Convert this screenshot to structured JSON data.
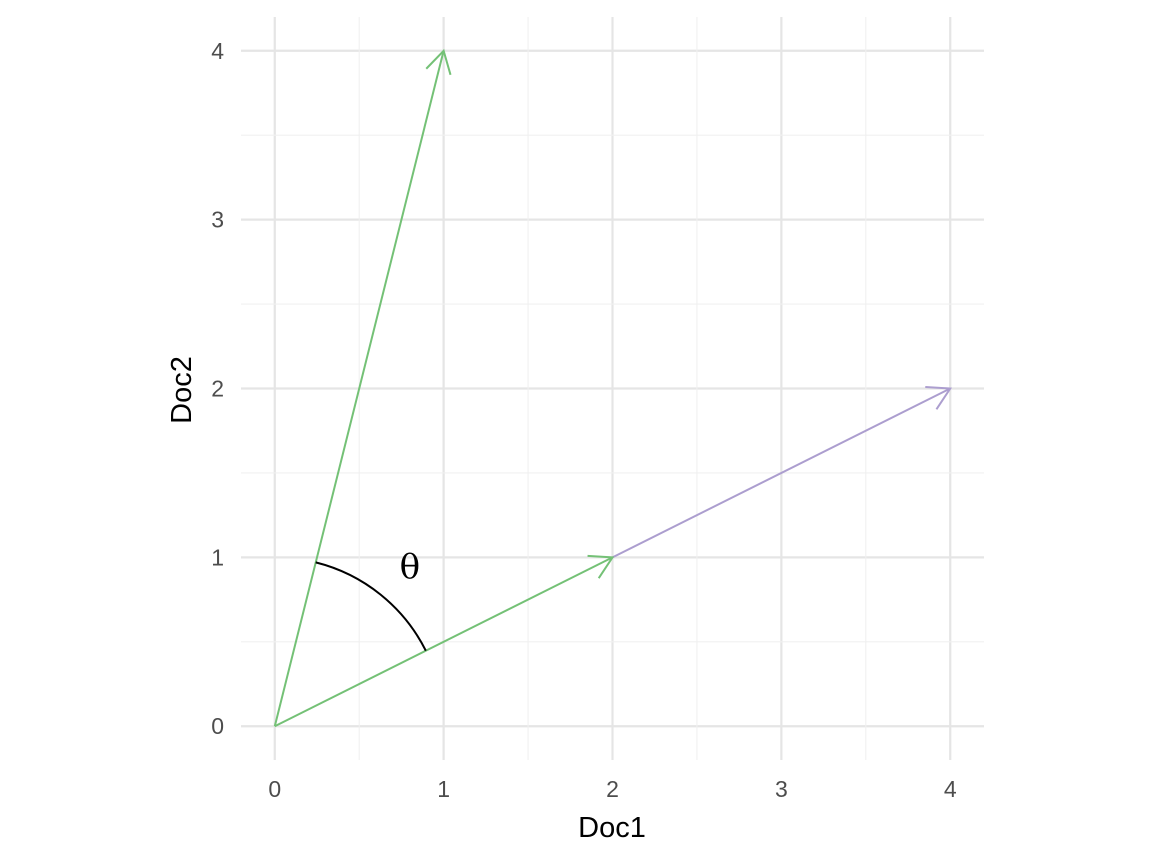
{
  "chart_data": {
    "type": "vector-plot",
    "xlabel": "Doc1",
    "ylabel": "Doc2",
    "xlim": [
      -0.2,
      4.2
    ],
    "ylim": [
      -0.2,
      4.2
    ],
    "x_ticks": [
      "0",
      "1",
      "2",
      "3",
      "4"
    ],
    "y_ticks": [
      "0",
      "1",
      "2",
      "3",
      "4"
    ],
    "grid": true,
    "vectors": [
      {
        "from": [
          2,
          1
        ],
        "to": [
          4,
          2
        ],
        "color": "#ac9ecf"
      },
      {
        "from": [
          0,
          0
        ],
        "to": [
          1,
          4
        ],
        "color": "#74c176"
      },
      {
        "from": [
          0,
          0
        ],
        "to": [
          2,
          1
        ],
        "color": "#74c176"
      }
    ],
    "angle_arc": {
      "radius": 1,
      "from_angle_deg": 26.565,
      "to_angle_deg": 75.964,
      "color": "#000000"
    },
    "annotation": {
      "text": "θ",
      "x": 0.8,
      "y": 0.93
    }
  }
}
